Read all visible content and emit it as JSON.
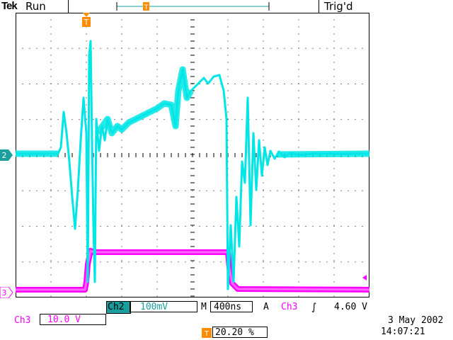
{
  "header": {
    "brand": "Tek",
    "status": "Run",
    "trigger_status": "Trig'd"
  },
  "channels": {
    "ch2_marker": "2",
    "ch3_marker": "3"
  },
  "footer": {
    "ch2_label": "Ch2",
    "ch2_scale": "100mV",
    "timebase_prefix": "M",
    "timebase": "400ns",
    "trigger_mode": "A",
    "trigger_source": "Ch3",
    "trigger_level": "4.60 V",
    "ch3_label": "Ch3",
    "ch3_scale": "10.0 V",
    "trigger_position": "20.20 %",
    "date": "3 May 2002",
    "time": "14:07:21"
  },
  "colors": {
    "ch2": "#00e5e5",
    "ch3": "#ff00ff",
    "trigger": "#ff8c00",
    "grid": "#000000"
  }
}
